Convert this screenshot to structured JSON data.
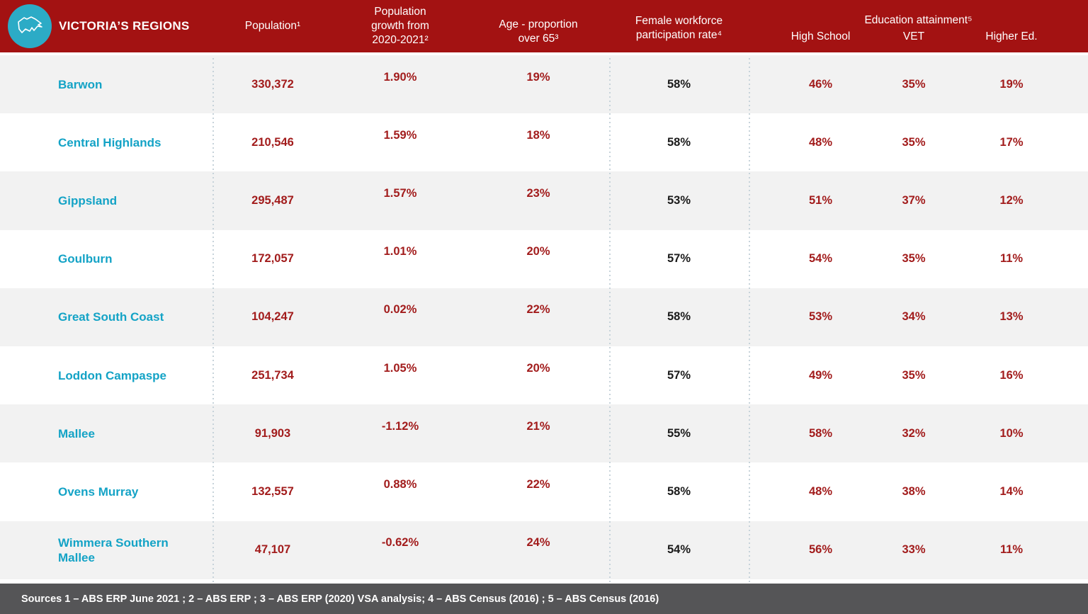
{
  "header": {
    "title": "VICTORIA’S REGIONS",
    "logo": {
      "icon": "victoria-state-outline",
      "circle_color": "#2CABC6"
    },
    "columns": {
      "population": "Population¹",
      "growth_lines": [
        "Population",
        "growth from",
        "2020-2021²"
      ],
      "age_lines": [
        "Age - proportion",
        "over 65³"
      ],
      "female_lines": [
        "Female workforce",
        "participation rate⁴"
      ],
      "education_group": "Education attainment⁵",
      "education_sub": [
        "High School",
        "VET",
        "Higher Ed."
      ]
    }
  },
  "chart_data": {
    "type": "table",
    "title": "VICTORIA’S REGIONS",
    "columns": [
      "Region",
      "Population¹",
      "Population growth from 2020-2021²",
      "Age - proportion over 65³",
      "Female workforce participation rate⁴",
      "Education attainment⁵ - High School",
      "Education attainment⁵ - VET",
      "Education attainment⁵ - Higher Ed."
    ],
    "rows": [
      {
        "name": "Barwon",
        "population": "330,372",
        "growth": "1.90%",
        "age": "19%",
        "female": "58%",
        "high_school": "46%",
        "vet": "35%",
        "higher_ed": "19%"
      },
      {
        "name": "Central Highlands",
        "population": "210,546",
        "growth": "1.59%",
        "age": "18%",
        "female": "58%",
        "high_school": "48%",
        "vet": "35%",
        "higher_ed": "17%"
      },
      {
        "name": "Gippsland",
        "population": "295,487",
        "growth": "1.57%",
        "age": "23%",
        "female": "53%",
        "high_school": "51%",
        "vet": "37%",
        "higher_ed": "12%"
      },
      {
        "name": "Goulburn",
        "population": "172,057",
        "growth": "1.01%",
        "age": "20%",
        "female": "57%",
        "high_school": "54%",
        "vet": "35%",
        "higher_ed": "11%"
      },
      {
        "name": "Great South Coast",
        "population": "104,247",
        "growth": "0.02%",
        "age": "22%",
        "female": "58%",
        "high_school": "53%",
        "vet": "34%",
        "higher_ed": "13%"
      },
      {
        "name": "Loddon Campaspe",
        "population": "251,734",
        "growth": "1.05%",
        "age": "20%",
        "female": "57%",
        "high_school": "49%",
        "vet": "35%",
        "higher_ed": "16%"
      },
      {
        "name": "Mallee",
        "population": "91,903",
        "growth": "-1.12%",
        "age": "21%",
        "female": "55%",
        "high_school": "58%",
        "vet": "32%",
        "higher_ed": "10%"
      },
      {
        "name": "Ovens Murray",
        "population": "132,557",
        "growth": "0.88%",
        "age": "22%",
        "female": "58%",
        "high_school": "48%",
        "vet": "38%",
        "higher_ed": "14%"
      },
      {
        "name": "Wimmera Southern Mallee",
        "population": "47,107",
        "growth": "-0.62%",
        "age": "24%",
        "female": "54%",
        "high_school": "56%",
        "vet": "33%",
        "higher_ed": "11%"
      }
    ]
  },
  "footer": {
    "sources_text": "Sources 1 – ABS ERP June 2021 ; 2 – ABS ERP ; 3 – ABS ERP (2020) VSA analysis; 4 – ABS Census (2016) ; 5 – ABS Census (2016)"
  },
  "colors": {
    "header_red": "#A31212",
    "value_red": "#A21C1C",
    "region_teal": "#14A3C6",
    "logo_circle_teal": "#2CABC6",
    "row_stripe_gray": "#F2F2F2",
    "footer_gray": "#555557",
    "female_value_black": "#1B1B1B"
  }
}
